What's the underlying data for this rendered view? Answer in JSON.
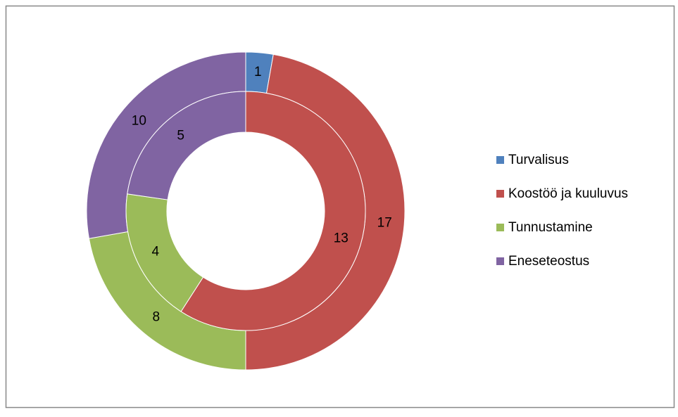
{
  "chart_data": {
    "type": "doughnut",
    "categories": [
      "Turvalisus",
      "Koostöö ja kuuluvus",
      "Tunnustamine",
      "Eneseteostus"
    ],
    "colors": [
      "#4f81bd",
      "#c0504d",
      "#9bbb59",
      "#8064a2"
    ],
    "series": [
      {
        "values": [
          1,
          17,
          8,
          10
        ]
      },
      {
        "values": [
          0,
          13,
          4,
          5
        ]
      }
    ],
    "legend": "right"
  }
}
